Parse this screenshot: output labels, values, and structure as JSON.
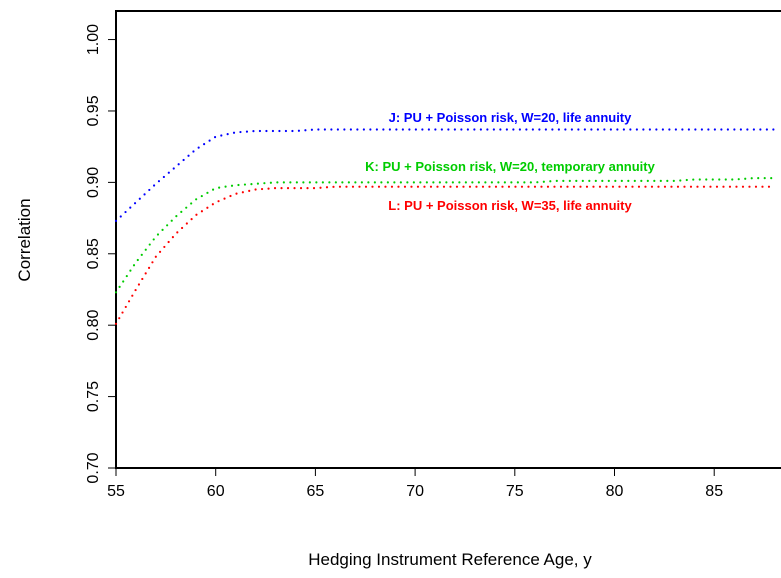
{
  "chart_data": {
    "type": "line",
    "title": "",
    "xlabel": "Hedging Instrument Reference Age, y",
    "ylabel": "Correlation",
    "xlim": [
      55,
      88.5
    ],
    "ylim": [
      0.7,
      1.02
    ],
    "x_ticks": [
      55,
      60,
      65,
      70,
      75,
      80,
      85
    ],
    "y_ticks": [
      "0.70",
      "0.75",
      "0.80",
      "0.85",
      "0.90",
      "0.95",
      "1.00"
    ],
    "grid": false,
    "legend": "none",
    "x": [
      55,
      56,
      57,
      58,
      59,
      60,
      61,
      62,
      63,
      64,
      65,
      66,
      67,
      68,
      69,
      70,
      71,
      72,
      73,
      74,
      75,
      76,
      77,
      78,
      79,
      80,
      81,
      82,
      83,
      84,
      85,
      86,
      87,
      88
    ],
    "series": [
      {
        "color": "#0000ff",
        "label": "J: PU + Poisson risk, W=20, life annuity",
        "values": [
          0.873,
          0.886,
          0.899,
          0.911,
          0.923,
          0.932,
          0.935,
          0.936,
          0.936,
          0.936,
          0.937,
          0.937,
          0.937,
          0.937,
          0.937,
          0.937,
          0.937,
          0.937,
          0.937,
          0.937,
          0.937,
          0.937,
          0.937,
          0.937,
          0.937,
          0.937,
          0.937,
          0.937,
          0.937,
          0.937,
          0.937,
          0.937,
          0.937,
          0.937
        ]
      },
      {
        "color": "#00cc00",
        "label": "K: PU + Poisson risk, W=20, temporary annuity",
        "values": [
          0.823,
          0.844,
          0.862,
          0.876,
          0.888,
          0.896,
          0.898,
          0.899,
          0.9,
          0.9,
          0.9,
          0.9,
          0.9,
          0.9,
          0.9,
          0.9,
          0.9,
          0.9,
          0.9,
          0.9,
          0.9,
          0.9,
          0.901,
          0.901,
          0.901,
          0.901,
          0.901,
          0.901,
          0.901,
          0.902,
          0.902,
          0.902,
          0.903,
          0.903
        ]
      },
      {
        "color": "#ff0000",
        "label": "L: PU + Poisson risk, W=35, life annuity",
        "values": [
          0.801,
          0.825,
          0.848,
          0.864,
          0.877,
          0.886,
          0.892,
          0.895,
          0.896,
          0.896,
          0.896,
          0.897,
          0.897,
          0.897,
          0.897,
          0.897,
          0.897,
          0.897,
          0.897,
          0.897,
          0.897,
          0.897,
          0.897,
          0.897,
          0.897,
          0.897,
          0.897,
          0.897,
          0.897,
          0.897,
          0.897,
          0.897,
          0.897,
          0.897
        ]
      }
    ]
  }
}
